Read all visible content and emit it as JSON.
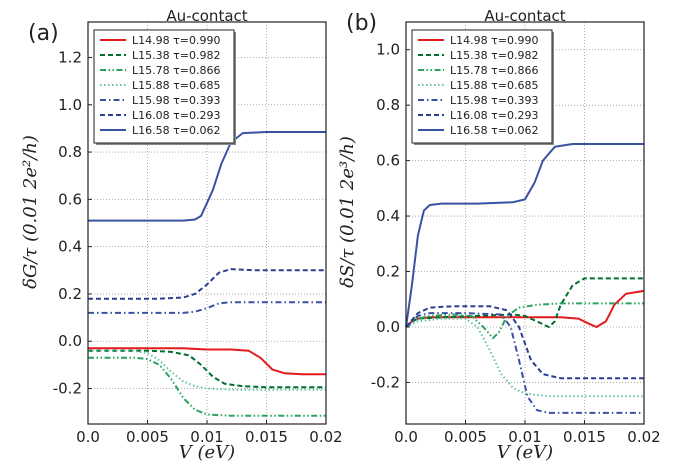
{
  "chart_data": [
    {
      "type": "line",
      "panel_label": "(a)",
      "title": "Au-contact",
      "xlabel": "V (eV)",
      "ylabel": "δG/τ (0.01 2e²/h)",
      "xlim": [
        0.0,
        0.02
      ],
      "ylim": [
        -0.35,
        1.35
      ],
      "xticks": [
        "0.0",
        "0.005",
        "0.01",
        "0.015",
        "0.02"
      ],
      "yticks": [
        "-0.2",
        "0.0",
        "0.2",
        "0.4",
        "0.6",
        "0.8",
        "1.0",
        "1.2"
      ],
      "grid": true,
      "legend_position": "top-left",
      "series": [
        {
          "name": "L14.98 τ=0.990",
          "color": "#e41a1c",
          "dash": "solid",
          "points": [
            [
              0,
              -0.03
            ],
            [
              0.002,
              -0.03
            ],
            [
              0.004,
              -0.03
            ],
            [
              0.006,
              -0.03
            ],
            [
              0.008,
              -0.03
            ],
            [
              0.01,
              -0.035
            ],
            [
              0.012,
              -0.035
            ],
            [
              0.0135,
              -0.04
            ],
            [
              0.0145,
              -0.07
            ],
            [
              0.0155,
              -0.12
            ],
            [
              0.0165,
              -0.135
            ],
            [
              0.018,
              -0.14
            ],
            [
              0.02,
              -0.14
            ]
          ]
        },
        {
          "name": "L15.38 τ=0.982",
          "color": "#006d2c",
          "dash": "dashed",
          "points": [
            [
              0,
              -0.04
            ],
            [
              0.003,
              -0.04
            ],
            [
              0.005,
              -0.04
            ],
            [
              0.006,
              -0.042
            ],
            [
              0.007,
              -0.045
            ],
            [
              0.0085,
              -0.06
            ],
            [
              0.0095,
              -0.1
            ],
            [
              0.0105,
              -0.15
            ],
            [
              0.0115,
              -0.18
            ],
            [
              0.013,
              -0.19
            ],
            [
              0.015,
              -0.195
            ],
            [
              0.02,
              -0.195
            ]
          ]
        },
        {
          "name": "L15.78 τ=0.866",
          "color": "#2ca25f",
          "dash": "dashdotdot",
          "points": [
            [
              0,
              -0.07
            ],
            [
              0.002,
              -0.07
            ],
            [
              0.004,
              -0.07
            ],
            [
              0.005,
              -0.075
            ],
            [
              0.006,
              -0.1
            ],
            [
              0.007,
              -0.16
            ],
            [
              0.0075,
              -0.2
            ],
            [
              0.008,
              -0.24
            ],
            [
              0.009,
              -0.29
            ],
            [
              0.01,
              -0.31
            ],
            [
              0.012,
              -0.315
            ],
            [
              0.015,
              -0.315
            ],
            [
              0.02,
              -0.315
            ]
          ]
        },
        {
          "name": "L15.88 τ=0.685",
          "color": "#66c2a4",
          "dash": "dotted",
          "points": [
            [
              0,
              -0.04
            ],
            [
              0.002,
              -0.04
            ],
            [
              0.004,
              -0.042
            ],
            [
              0.005,
              -0.05
            ],
            [
              0.006,
              -0.08
            ],
            [
              0.007,
              -0.13
            ],
            [
              0.008,
              -0.17
            ],
            [
              0.009,
              -0.19
            ],
            [
              0.01,
              -0.2
            ],
            [
              0.012,
              -0.205
            ],
            [
              0.015,
              -0.205
            ],
            [
              0.02,
              -0.205
            ]
          ]
        },
        {
          "name": "L15.98 τ=0.393",
          "color": "#3953a4",
          "dash": "dashdot",
          "points": [
            [
              0,
              0.12
            ],
            [
              0.002,
              0.12
            ],
            [
              0.004,
              0.12
            ],
            [
              0.006,
              0.12
            ],
            [
              0.008,
              0.12
            ],
            [
              0.009,
              0.125
            ],
            [
              0.01,
              0.14
            ],
            [
              0.011,
              0.16
            ],
            [
              0.012,
              0.165
            ],
            [
              0.015,
              0.165
            ],
            [
              0.02,
              0.165
            ]
          ]
        },
        {
          "name": "L16.08 τ=0.293",
          "color": "#2b3e91",
          "dash": "dashed",
          "points": [
            [
              0,
              0.18
            ],
            [
              0.002,
              0.18
            ],
            [
              0.004,
              0.18
            ],
            [
              0.006,
              0.18
            ],
            [
              0.008,
              0.185
            ],
            [
              0.009,
              0.2
            ],
            [
              0.01,
              0.24
            ],
            [
              0.011,
              0.29
            ],
            [
              0.012,
              0.305
            ],
            [
              0.014,
              0.3
            ],
            [
              0.02,
              0.3
            ]
          ]
        },
        {
          "name": "L16.58 τ=0.062",
          "color": "#3953a4",
          "dash": "solid",
          "points": [
            [
              0,
              0.51
            ],
            [
              0.002,
              0.51
            ],
            [
              0.004,
              0.51
            ],
            [
              0.006,
              0.51
            ],
            [
              0.008,
              0.51
            ],
            [
              0.009,
              0.515
            ],
            [
              0.0095,
              0.53
            ],
            [
              0.0105,
              0.64
            ],
            [
              0.0112,
              0.75
            ],
            [
              0.012,
              0.84
            ],
            [
              0.013,
              0.88
            ],
            [
              0.015,
              0.885
            ],
            [
              0.02,
              0.885
            ]
          ]
        }
      ]
    },
    {
      "type": "line",
      "panel_label": "(b)",
      "title": "Au-contact",
      "xlabel": "V (eV)",
      "ylabel": "δS/τ (0.01 2e³/h)",
      "xlim": [
        0.0,
        0.02
      ],
      "ylim": [
        -0.35,
        1.1
      ],
      "xticks": [
        "0.0",
        "0.005",
        "0.01",
        "0.015",
        "0.02"
      ],
      "yticks": [
        "-0.2",
        "0.0",
        "0.2",
        "0.4",
        "0.6",
        "0.8",
        "1.0"
      ],
      "grid": true,
      "legend_position": "top-left",
      "series": [
        {
          "name": "L14.98 τ=0.990",
          "color": "#e41a1c",
          "dash": "solid",
          "points": [
            [
              0,
              0.0
            ],
            [
              0.0005,
              0.02
            ],
            [
              0.001,
              0.03
            ],
            [
              0.002,
              0.035
            ],
            [
              0.005,
              0.035
            ],
            [
              0.01,
              0.035
            ],
            [
              0.013,
              0.035
            ],
            [
              0.0145,
              0.03
            ],
            [
              0.0152,
              0.015
            ],
            [
              0.016,
              0.0
            ],
            [
              0.0168,
              0.02
            ],
            [
              0.0175,
              0.08
            ],
            [
              0.0185,
              0.12
            ],
            [
              0.02,
              0.13
            ]
          ]
        },
        {
          "name": "L15.38 τ=0.982",
          "color": "#006d2c",
          "dash": "dashed",
          "points": [
            [
              0,
              0.0
            ],
            [
              0.0005,
              0.02
            ],
            [
              0.001,
              0.03
            ],
            [
              0.003,
              0.035
            ],
            [
              0.006,
              0.04
            ],
            [
              0.009,
              0.045
            ],
            [
              0.01,
              0.04
            ],
            [
              0.011,
              0.02
            ],
            [
              0.012,
              0.0
            ],
            [
              0.0125,
              0.02
            ],
            [
              0.013,
              0.08
            ],
            [
              0.014,
              0.15
            ],
            [
              0.015,
              0.175
            ],
            [
              0.02,
              0.175
            ]
          ]
        },
        {
          "name": "L15.78 τ=0.866",
          "color": "#2ca25f",
          "dash": "dashdotdot",
          "points": [
            [
              0,
              0.0
            ],
            [
              0.001,
              0.03
            ],
            [
              0.002,
              0.04
            ],
            [
              0.004,
              0.045
            ],
            [
              0.0055,
              0.04
            ],
            [
              0.0065,
              0.0
            ],
            [
              0.0073,
              -0.04
            ],
            [
              0.0078,
              -0.02
            ],
            [
              0.0085,
              0.04
            ],
            [
              0.0095,
              0.07
            ],
            [
              0.011,
              0.08
            ],
            [
              0.013,
              0.085
            ],
            [
              0.02,
              0.085
            ]
          ]
        },
        {
          "name": "L15.88 τ=0.685",
          "color": "#66c2a4",
          "dash": "dotted",
          "points": [
            [
              0,
              0.0
            ],
            [
              0.001,
              0.02
            ],
            [
              0.003,
              0.03
            ],
            [
              0.005,
              0.03
            ],
            [
              0.006,
              0.0
            ],
            [
              0.007,
              -0.08
            ],
            [
              0.008,
              -0.17
            ],
            [
              0.009,
              -0.22
            ],
            [
              0.01,
              -0.24
            ],
            [
              0.012,
              -0.25
            ],
            [
              0.015,
              -0.25
            ],
            [
              0.02,
              -0.25
            ]
          ]
        },
        {
          "name": "L15.98 τ=0.393",
          "color": "#3953a4",
          "dash": "dashdot",
          "points": [
            [
              0,
              0.0
            ],
            [
              0.001,
              0.04
            ],
            [
              0.002,
              0.05
            ],
            [
              0.005,
              0.05
            ],
            [
              0.008,
              0.045
            ],
            [
              0.0088,
              0.0
            ],
            [
              0.0095,
              -0.12
            ],
            [
              0.0102,
              -0.25
            ],
            [
              0.011,
              -0.3
            ],
            [
              0.012,
              -0.31
            ],
            [
              0.015,
              -0.31
            ],
            [
              0.02,
              -0.31
            ]
          ]
        },
        {
          "name": "L16.08 τ=0.293",
          "color": "#2b3e91",
          "dash": "dashed",
          "points": [
            [
              0,
              0.0
            ],
            [
              0.001,
              0.05
            ],
            [
              0.002,
              0.07
            ],
            [
              0.004,
              0.075
            ],
            [
              0.007,
              0.075
            ],
            [
              0.0085,
              0.06
            ],
            [
              0.0095,
              0.0
            ],
            [
              0.0105,
              -0.12
            ],
            [
              0.0115,
              -0.17
            ],
            [
              0.013,
              -0.185
            ],
            [
              0.015,
              -0.185
            ],
            [
              0.02,
              -0.185
            ]
          ]
        },
        {
          "name": "L16.58 τ=0.062",
          "color": "#3953a4",
          "dash": "solid",
          "points": [
            [
              0,
              0.0
            ],
            [
              0.0005,
              0.15
            ],
            [
              0.001,
              0.33
            ],
            [
              0.0015,
              0.42
            ],
            [
              0.002,
              0.44
            ],
            [
              0.003,
              0.445
            ],
            [
              0.006,
              0.445
            ],
            [
              0.009,
              0.45
            ],
            [
              0.01,
              0.46
            ],
            [
              0.0108,
              0.52
            ],
            [
              0.0115,
              0.6
            ],
            [
              0.0125,
              0.65
            ],
            [
              0.014,
              0.66
            ],
            [
              0.02,
              0.66
            ]
          ]
        }
      ]
    }
  ]
}
